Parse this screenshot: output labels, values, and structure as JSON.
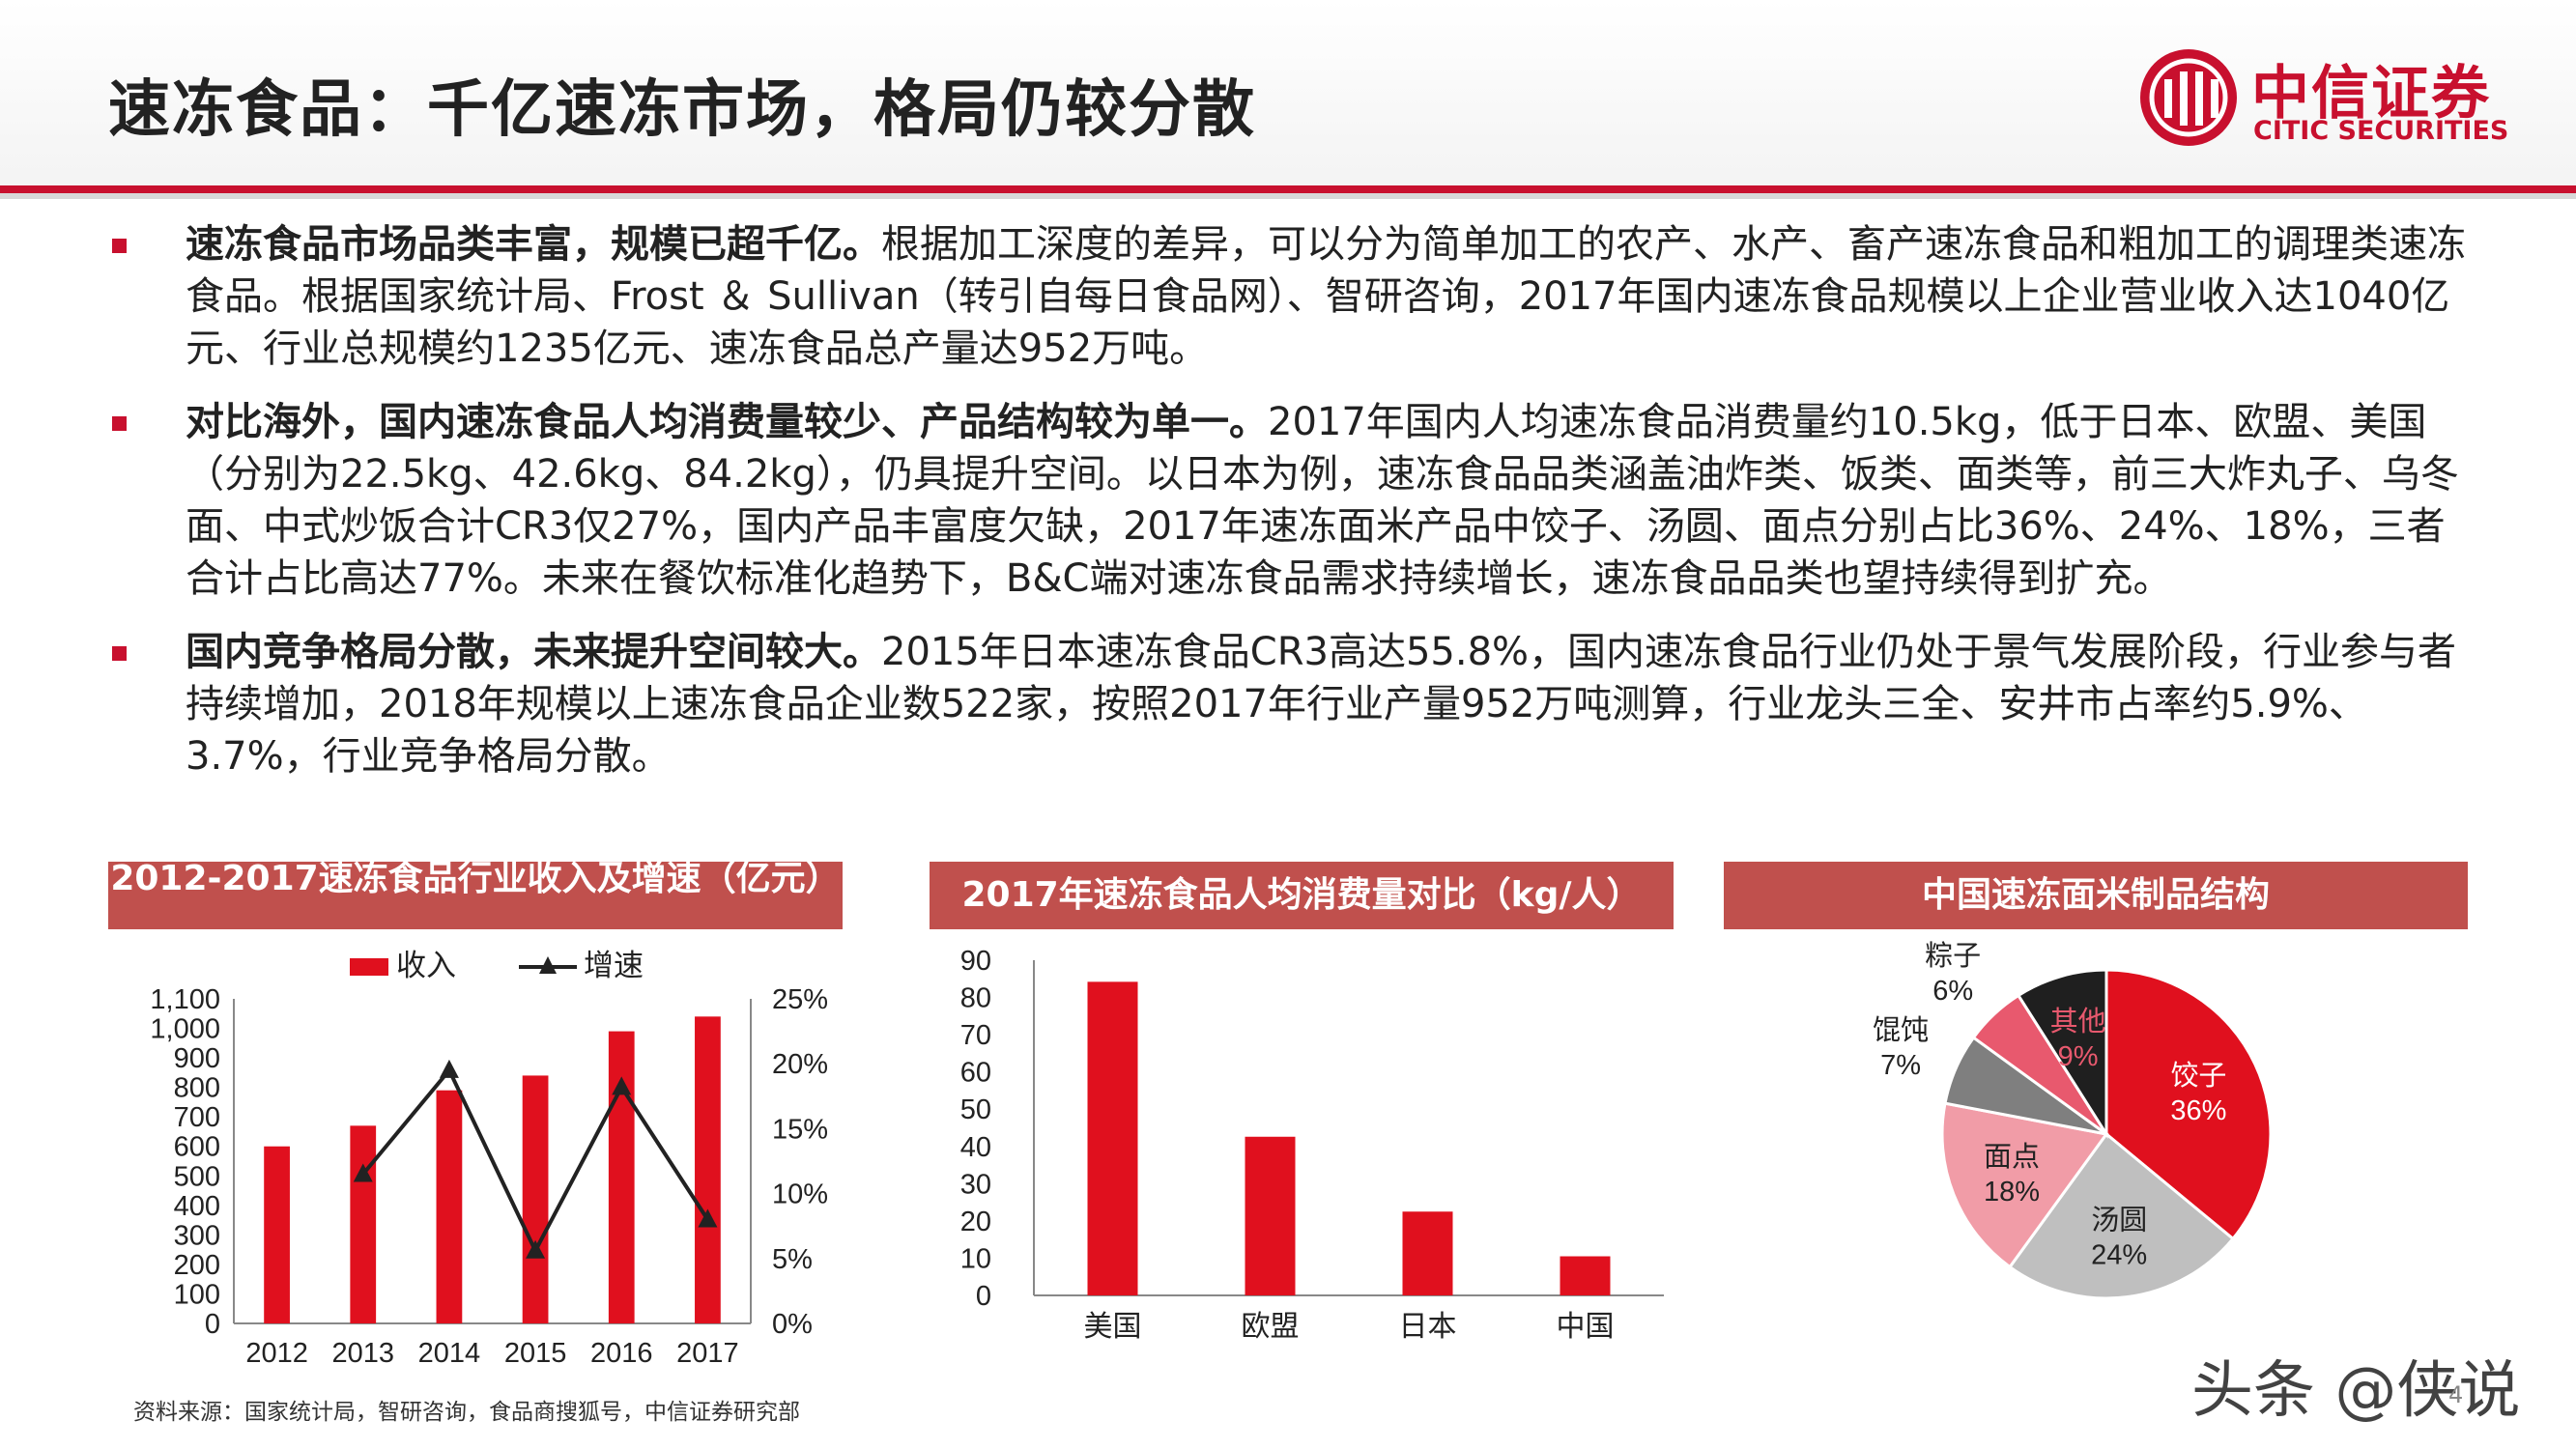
{
  "header": {
    "title": "速冻食品：千亿速冻市场，格局仍较分散",
    "logo_cn": "中信证券",
    "logo_en": "CITIC SECURITIES"
  },
  "bullets": [
    {
      "lead": "速冻食品市场品类丰富，规模已超千亿。",
      "body": "根据加工深度的差异，可以分为简单加工的农产、水产、畜产速冻食品和粗加工的调理类速冻食品。根据国家统计局、Frost ＆ Sullivan（转引自每日食品网）、智研咨询，2017年国内速冻食品规模以上企业营业收入达1040亿元、行业总规模约1235亿元、速冻食品总产量达952万吨。"
    },
    {
      "lead": "对比海外，国内速冻食品人均消费量较少、产品结构较为单一。",
      "body": "2017年国内人均速冻食品消费量约10.5kg，低于日本、欧盟、美国（分别为22.5kg、42.6kg、84.2kg），仍具提升空间。以日本为例，速冻食品品类涵盖油炸类、饭类、面类等，前三大炸丸子、乌冬面、中式炒饭合计CR3仅27%，国内产品丰富度欠缺，2017年速冻面米产品中饺子、汤圆、面点分别占比36%、24%、18%，三者合计占比高达77%。未来在餐饮标准化趋势下，B&C端对速冻食品需求持续增长，速冻食品品类也望持续得到扩充。"
    },
    {
      "lead": "国内竞争格局分散，未来提升空间较大。",
      "body": "2015年日本速冻食品CR3高达55.8%，国内速冻食品行业仍处于景气发展阶段，行业参与者持续增加，2018年规模以上速冻食品企业数522家，按照2017年行业产量952万吨测算，行业龙头三全、安井市占率约5.9%、3.7%，行业竞争格局分散。"
    }
  ],
  "chart_data": [
    {
      "type": "bar",
      "title": "2012-2017速冻食品行业收入及增速（亿元）",
      "categories": [
        "2012",
        "2013",
        "2014",
        "2015",
        "2016",
        "2017"
      ],
      "series": [
        {
          "name": "收入",
          "type": "bar",
          "axis": "left",
          "values": [
            600,
            670,
            790,
            840,
            990,
            1040
          ]
        },
        {
          "name": "增速",
          "type": "line",
          "axis": "right",
          "values": [
            null,
            11.5,
            19.5,
            5.6,
            18.2,
            8
          ]
        }
      ],
      "ylim": [
        0,
        1100
      ],
      "yticks": [
        "0",
        "100",
        "200",
        "300",
        "400",
        "500",
        "600",
        "700",
        "800",
        "900",
        "1,000",
        "1,100"
      ],
      "y2lim": [
        0,
        25
      ],
      "y2ticks": [
        "0%",
        "5%",
        "10%",
        "15%",
        "20%",
        "25%"
      ],
      "legend": "top",
      "colors": {
        "bar": "#e0101e",
        "line": "#222222"
      }
    },
    {
      "type": "bar",
      "title": "2017年速冻食品人均消费量对比（kg/人）",
      "categories": [
        "美国",
        "欧盟",
        "日本",
        "中国"
      ],
      "values": [
        84.2,
        42.6,
        22.5,
        10.5
      ],
      "ylim": [
        0,
        90
      ],
      "yticks": [
        "0",
        "10",
        "20",
        "30",
        "40",
        "50",
        "60",
        "70",
        "80",
        "90"
      ],
      "colors": {
        "bar": "#e0101e"
      }
    },
    {
      "type": "pie",
      "title": "中国速冻面米制品结构",
      "slices": [
        {
          "name": "饺子",
          "value": 36,
          "label": "36%",
          "color": "#e0101e"
        },
        {
          "name": "汤圆",
          "value": 24,
          "label": "24%",
          "color": "#bfbfbf"
        },
        {
          "name": "面点",
          "value": 18,
          "label": "18%",
          "color": "#f19ca7"
        },
        {
          "name": "馄饨",
          "value": 7,
          "label": "7%",
          "color": "#7f7f7f"
        },
        {
          "name": "粽子",
          "value": 6,
          "label": "6%",
          "color": "#e8596e"
        },
        {
          "name": "其他",
          "value": 9,
          "label": "9%",
          "color": "#1f1f1f"
        }
      ]
    }
  ],
  "footer": {
    "source": "资料来源：国家统计局，智研咨询，食品商搜狐号，中信证券研究部",
    "watermark": "头条 @侠说",
    "page_number": "4"
  },
  "colors": {
    "brand_red": "#c8102e",
    "chart_title_bg": "#c0504d"
  }
}
